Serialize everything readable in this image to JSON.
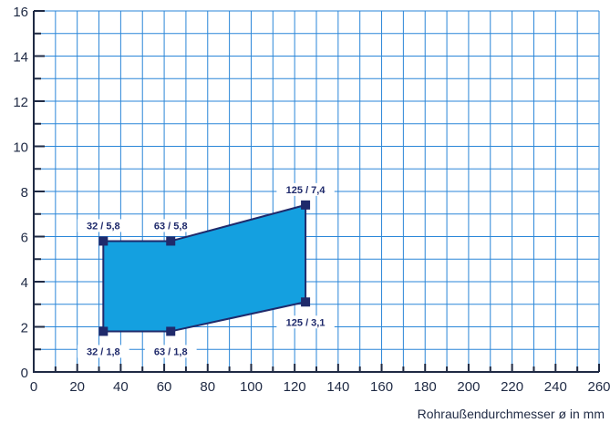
{
  "chart_data": {
    "type": "area",
    "xlabel": "Rohraußendurchmesser ø in mm",
    "ylabel": "",
    "xlim": [
      0,
      260
    ],
    "ylim": [
      0,
      16
    ],
    "x_ticks": [
      0,
      20,
      40,
      60,
      80,
      100,
      120,
      140,
      160,
      180,
      200,
      220,
      240,
      260
    ],
    "y_ticks": [
      0,
      2,
      4,
      6,
      8,
      10,
      12,
      14,
      16
    ],
    "grid": true,
    "region": {
      "points": [
        {
          "x": 32,
          "y": 5.8,
          "label": "32 / 5,8"
        },
        {
          "x": 63,
          "y": 5.8,
          "label": "63 / 5,8"
        },
        {
          "x": 125,
          "y": 7.4,
          "label": "125 / 7,4"
        },
        {
          "x": 125,
          "y": 3.1,
          "label": "125 / 3,1"
        },
        {
          "x": 63,
          "y": 1.8,
          "label": "63 / 1,8"
        },
        {
          "x": 32,
          "y": 1.8,
          "label": "32 / 1,8"
        }
      ]
    },
    "colors": {
      "grid": "#2a86d8",
      "axis": "#1f2a44",
      "fill": "#14a0e0",
      "outline": "#1f2a6b",
      "marker": "#1f2a6b"
    }
  }
}
